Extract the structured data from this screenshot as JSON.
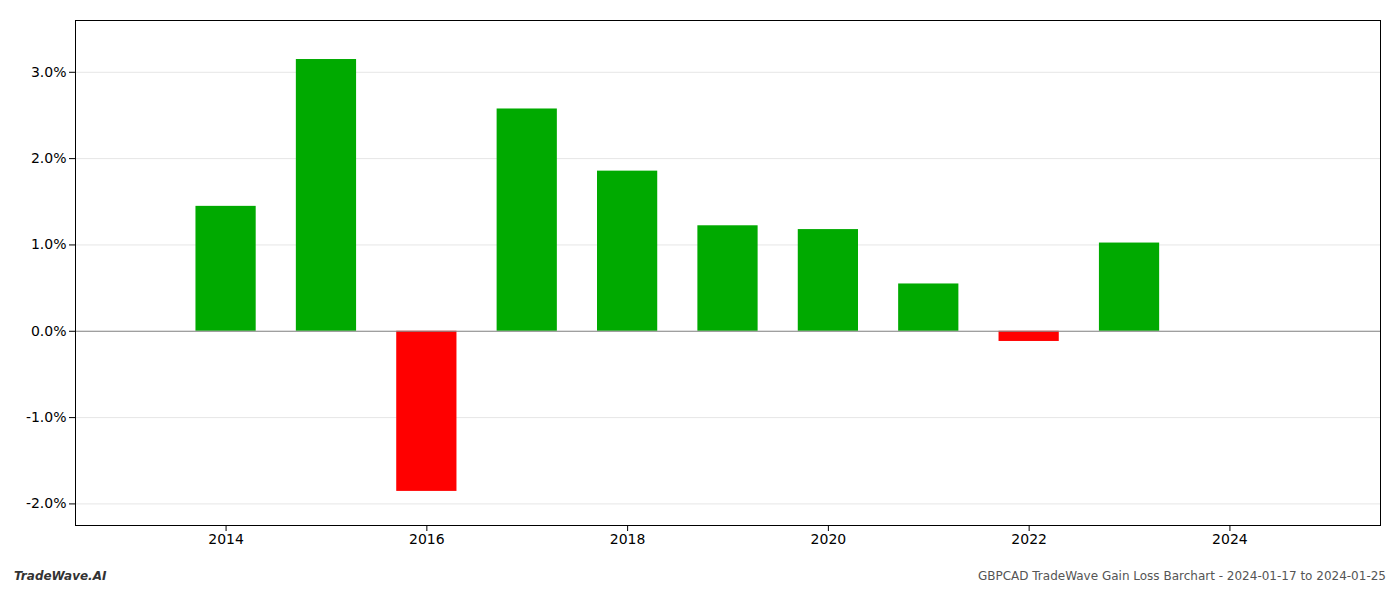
{
  "chart_data": {
    "type": "bar",
    "x": [
      2014,
      2015,
      2016,
      2017,
      2018,
      2019,
      2020,
      2021,
      2022,
      2023
    ],
    "values": [
      0.01447,
      0.03148,
      -0.01855,
      0.02575,
      0.01855,
      0.01222,
      0.01178,
      0.00548,
      -0.00118,
      0.01022
    ],
    "colors": [
      "#00aa00",
      "#00aa00",
      "#ff0000",
      "#00aa00",
      "#00aa00",
      "#00aa00",
      "#00aa00",
      "#00aa00",
      "#ff0000",
      "#00aa00"
    ],
    "xlim": [
      2012.5,
      2025.5
    ],
    "xticks": [
      2014,
      2016,
      2018,
      2020,
      2022,
      2024
    ],
    "ylim": [
      -0.0225,
      0.036
    ],
    "yticks": [
      {
        "value": -0.02,
        "label": "-2.0%"
      },
      {
        "value": -0.01,
        "label": "-1.0%"
      },
      {
        "value": 0.0,
        "label": "0.0%"
      },
      {
        "value": 0.01,
        "label": "1.0%"
      },
      {
        "value": 0.02,
        "label": "2.0%"
      },
      {
        "value": 0.03,
        "label": "3.0%"
      }
    ],
    "grid": true,
    "annotations": [
      "TradeWave.AI",
      "GBPCAD TradeWave Gain Loss Barchart - 2024-01-17 to 2024-01-25"
    ]
  }
}
